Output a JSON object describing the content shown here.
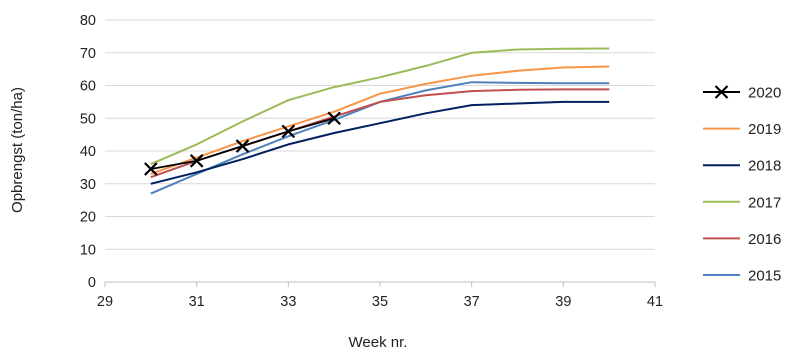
{
  "chart_data": {
    "type": "line",
    "title": "",
    "xlabel": "Week nr.",
    "ylabel": "Opbrengst (ton/ha)",
    "xlim": [
      29,
      41
    ],
    "ylim": [
      0,
      80
    ],
    "xticks": [
      "29",
      "31",
      "33",
      "35",
      "37",
      "39",
      "41"
    ],
    "yticks": [
      "0",
      "10",
      "20",
      "30",
      "40",
      "50",
      "60",
      "70",
      "80"
    ],
    "grid": "horizontal",
    "legend_position": "right",
    "series": [
      {
        "name": "2020",
        "color": "#000000",
        "marker": "x-marker",
        "line": true,
        "x": [
          30,
          31,
          32,
          33,
          34
        ],
        "y": [
          34.5,
          37,
          41.5,
          46,
          50
        ]
      },
      {
        "name": "2019",
        "color": "#F79646",
        "marker": null,
        "line": true,
        "x": [
          30,
          31,
          32,
          33,
          34,
          35,
          36,
          37,
          38,
          39,
          40
        ],
        "y": [
          33,
          38,
          43,
          47.5,
          52,
          57.5,
          60.5,
          63,
          64.5,
          65.5,
          65.8
        ]
      },
      {
        "name": "2018",
        "color": "#002060",
        "marker": null,
        "line": true,
        "x": [
          30,
          31,
          32,
          33,
          34,
          35,
          36,
          37,
          38,
          39,
          40
        ],
        "y": [
          30,
          33.5,
          37.5,
          42,
          45.5,
          48.5,
          51.5,
          54,
          54.5,
          55,
          55
        ]
      },
      {
        "name": "2017",
        "color": "#9BBB59",
        "marker": null,
        "line": true,
        "x": [
          30,
          31,
          32,
          33,
          34,
          35,
          36,
          37,
          38,
          39,
          40
        ],
        "y": [
          36,
          42,
          49,
          55.5,
          59.5,
          62.5,
          66,
          70,
          71,
          71.2,
          71.3
        ]
      },
      {
        "name": "2016",
        "color": "#C0504D",
        "marker": null,
        "line": true,
        "x": [
          30,
          31,
          32,
          33,
          34,
          35,
          36,
          37,
          38,
          39,
          40
        ],
        "y": [
          32,
          37,
          41.5,
          46,
          50.5,
          55,
          57,
          58.3,
          58.7,
          58.8,
          58.8
        ]
      },
      {
        "name": "2015",
        "color": "#4F81BD",
        "marker": null,
        "line": true,
        "x": [
          30,
          31,
          32,
          33,
          34,
          35,
          36,
          37,
          38,
          39,
          40
        ],
        "y": [
          27,
          33,
          39,
          44.5,
          49.5,
          55,
          58.5,
          61,
          60.8,
          60.7,
          60.7
        ]
      }
    ]
  }
}
